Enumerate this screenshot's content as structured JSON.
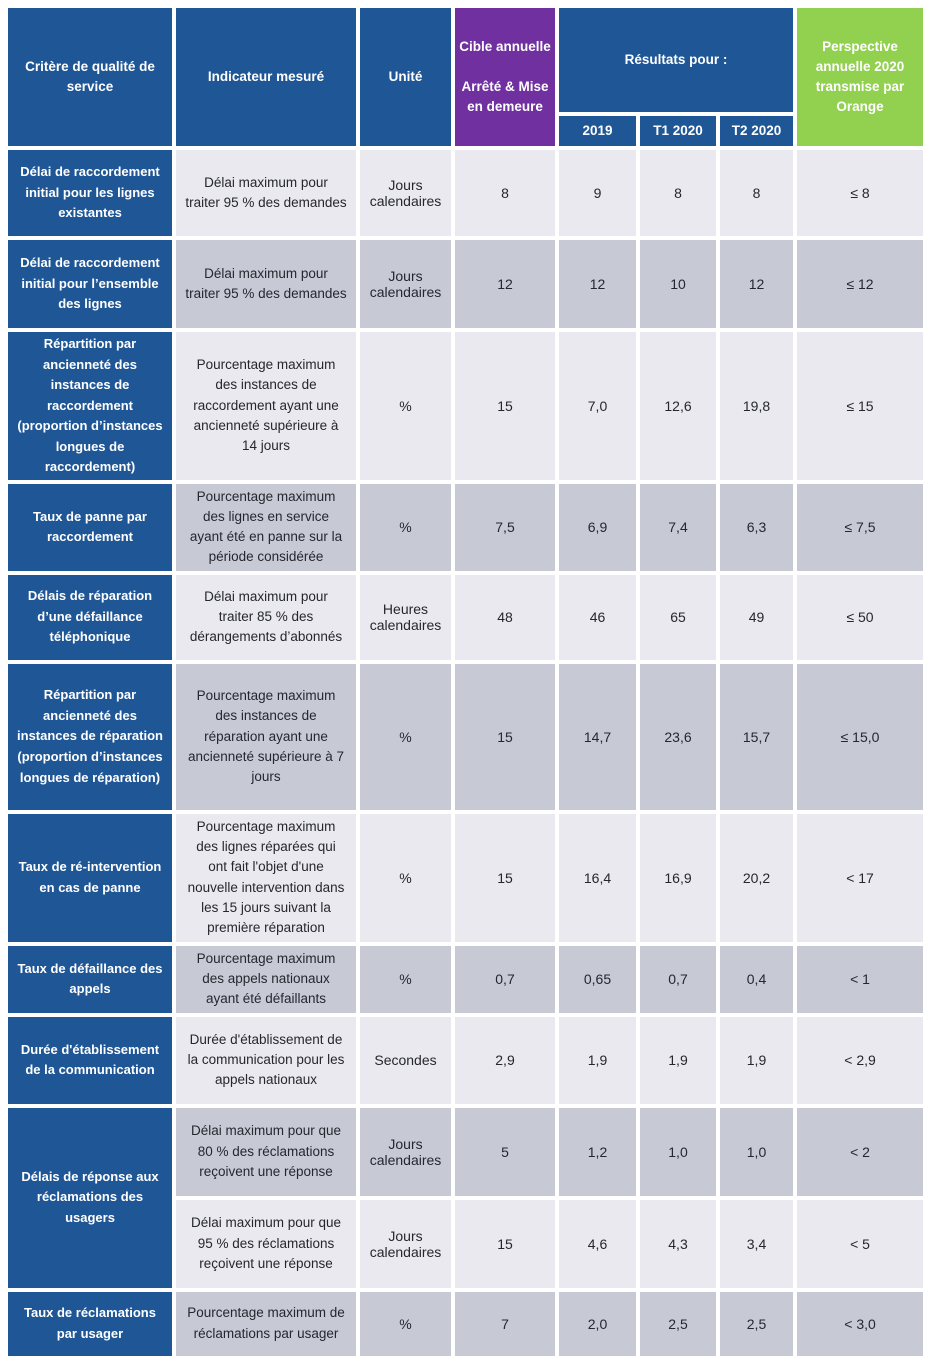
{
  "colors": {
    "header_blue": "#1F5696",
    "target_purple": "#7030A0",
    "perspective_green": "#92D050",
    "row_light": "#E9E9EF",
    "row_dark": "#C7CAD5",
    "header_text": "#FFFFFF",
    "body_text": "#26262E"
  },
  "header": {
    "criteria": "Critère de qualité de service",
    "indicator": "Indicateur mesuré",
    "unit": "Unité",
    "target_line1": "Cible annuelle",
    "target_line2": "Arrêté & Mise en demeure",
    "results": "Résultats pour :",
    "periods": [
      "2019",
      "T1 2020",
      "T2 2020"
    ],
    "perspective": "Perspective annuelle 2020 transmise par Orange"
  },
  "rows": [
    {
      "criteria": "Délai de raccordement initial pour les lignes existantes",
      "indicator": "Délai maximum pour traiter 95 % des demandes",
      "unit": "Jours calendaires",
      "target": "8",
      "y2019": "9",
      "t1_2020": "8",
      "t2_2020": "8",
      "perspective": "≤ 8",
      "shade": "light"
    },
    {
      "criteria": "Délai de raccordement initial pour l’ensemble des lignes",
      "indicator": "Délai maximum pour traiter 95 % des demandes",
      "unit": "Jours calendaires",
      "target": "12",
      "y2019": "12",
      "t1_2020": "10",
      "t2_2020": "12",
      "perspective": "≤ 12",
      "shade": "dark"
    },
    {
      "criteria": "Répartition par ancienneté des instances de raccordement (proportion d’instances longues de raccordement)",
      "indicator": "Pourcentage maximum des instances de raccordement ayant une ancienneté supérieure à 14 jours",
      "unit": "%",
      "target": "15",
      "y2019": "7,0",
      "t1_2020": "12,6",
      "t2_2020": "19,8",
      "perspective": "≤ 15",
      "shade": "light"
    },
    {
      "criteria": "Taux de panne par raccordement",
      "indicator": "Pourcentage maximum des lignes en service ayant été en panne sur la période considérée",
      "unit": "%",
      "target": "7,5",
      "y2019": "6,9",
      "t1_2020": "7,4",
      "t2_2020": "6,3",
      "perspective": "≤ 7,5",
      "shade": "dark"
    },
    {
      "criteria": "Délais de réparation d’une défaillance téléphonique",
      "indicator": "Délai maximum pour traiter 85 % des dérangements d’abonnés",
      "unit": "Heures calendaires",
      "target": "48",
      "y2019": "46",
      "t1_2020": "65",
      "t2_2020": "49",
      "perspective": "≤ 50",
      "shade": "light"
    },
    {
      "criteria": "Répartition par ancienneté des instances de réparation (proportion d’instances longues de réparation)",
      "indicator": "Pourcentage maximum des instances de réparation ayant une ancienneté supérieure à 7 jours",
      "unit": "%",
      "target": "15",
      "y2019": "14,7",
      "t1_2020": "23,6",
      "t2_2020": "15,7",
      "perspective": "≤ 15,0",
      "shade": "dark"
    },
    {
      "criteria": "Taux de ré-intervention en cas de panne",
      "indicator": "Pourcentage maximum des lignes réparées qui ont fait l'objet d'une nouvelle intervention dans les 15 jours suivant la première réparation",
      "unit": "%",
      "target": "15",
      "y2019": "16,4",
      "t1_2020": "16,9",
      "t2_2020": "20,2",
      "perspective": "< 17",
      "shade": "light"
    },
    {
      "criteria": "Taux de défaillance des appels",
      "indicator": "Pourcentage maximum des appels nationaux ayant été défaillants",
      "unit": "%",
      "target": "0,7",
      "y2019": "0,65",
      "t1_2020": "0,7",
      "t2_2020": "0,4",
      "perspective": "< 1",
      "shade": "dark"
    },
    {
      "criteria": "Durée d'établissement de la communication",
      "indicator": "Durée d'établissement de la communication pour les appels nationaux",
      "unit": "Secondes",
      "target": "2,9",
      "y2019": "1,9",
      "t1_2020": "1,9",
      "t2_2020": "1,9",
      "perspective": "< 2,9",
      "shade": "light"
    },
    {
      "criteria": "Délais de réponse aux réclamations des usagers",
      "criteria_rowspan": 2,
      "indicator": "Délai maximum pour que 80 % des réclamations reçoivent une réponse",
      "unit": "Jours calendaires",
      "target": "5",
      "y2019": "1,2",
      "t1_2020": "1,0",
      "t2_2020": "1,0",
      "perspective": "< 2",
      "shade": "dark"
    },
    {
      "criteria": null,
      "indicator": "Délai maximum pour que 95 % des réclamations reçoivent une réponse",
      "unit": "Jours calendaires",
      "target": "15",
      "y2019": "4,6",
      "t1_2020": "4,3",
      "t2_2020": "3,4",
      "perspective": "< 5",
      "shade": "light"
    },
    {
      "criteria": "Taux de réclamations par usager",
      "indicator": "Pourcentage maximum de réclamations par usager",
      "unit": "%",
      "target": "7",
      "y2019": "2,0",
      "t1_2020": "2,5",
      "t2_2020": "2,5",
      "perspective": "< 3,0",
      "shade": "dark"
    }
  ]
}
